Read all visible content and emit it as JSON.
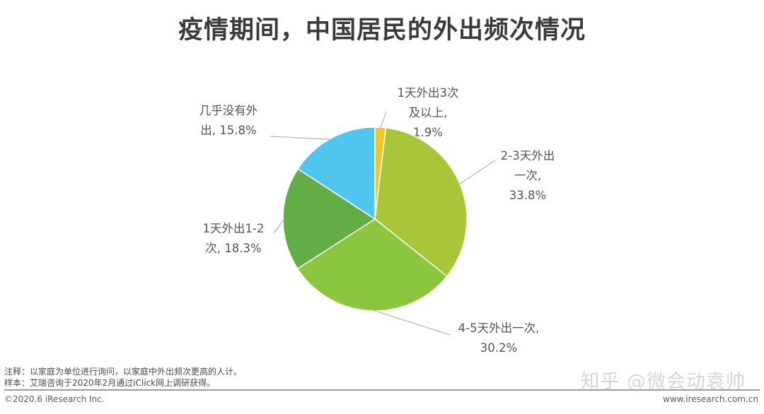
{
  "title": "疫情期间，中国居民的外出频次情况",
  "chart_data": {
    "type": "pie",
    "slices": [
      {
        "name": "1天外出3次及以上",
        "value": 1.9,
        "label_lines": [
          "1天外出3次",
          "及以上,",
          "1.9%"
        ],
        "color": "#f3c623"
      },
      {
        "name": "2-3天外出一次",
        "value": 33.8,
        "label_lines": [
          "2-3天外出",
          "一次,",
          "33.8%"
        ],
        "color": "#a8c638"
      },
      {
        "name": "4-5天外出一次",
        "value": 30.2,
        "label_lines": [
          "4-5天外出一次,",
          "30.2%"
        ],
        "color": "#8cc63e"
      },
      {
        "name": "1天外出1-2次",
        "value": 18.3,
        "label_lines": [
          "1天外出1-2",
          "次, 18.3%"
        ],
        "color": "#62ad45"
      },
      {
        "name": "几乎没有外出",
        "value": 15.8,
        "label_lines": [
          "几乎没有外",
          "出, 15.8%"
        ],
        "color": "#4fc5ef"
      }
    ]
  },
  "notes": {
    "line1": "注释：以家庭为单位进行询问，以家庭中外出频次更高的人计。",
    "line2": "样本：艾瑞咨询于2020年2月通过iClick网上调研获得。"
  },
  "footer": {
    "copyright": "©2020.6 iResearch Inc.",
    "url": "www.iresearch.com.cn"
  },
  "watermark": "知乎 @微会动袁帅"
}
